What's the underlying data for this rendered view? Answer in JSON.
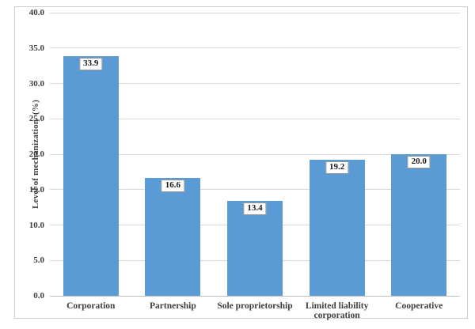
{
  "chart_data": {
    "type": "bar",
    "title": "",
    "categories": [
      "Corporation",
      "Partnership",
      "Sole proprietorship",
      "Limited liability corporation",
      "Cooperative"
    ],
    "values": [
      33.9,
      16.6,
      13.4,
      19.2,
      20.0
    ],
    "value_labels": [
      "33.9",
      "16.6",
      "13.4",
      "19.2",
      "20.0"
    ],
    "xlabel": "",
    "ylabel": "Level of mechanization  (%)",
    "ylim": [
      0,
      40
    ],
    "ytick_labels": [
      "0.0",
      "5.0",
      "10.0",
      "15.0",
      "20.0",
      "25.0",
      "30.0",
      "35.0",
      "40.0"
    ],
    "grid": true,
    "legend": false,
    "colors": {
      "bar": "#5B9BD5",
      "gridline": "#D9D9D9",
      "axis_line": "#BFBFBF",
      "axis_text": "#404040",
      "value_text": "#1a1a1a",
      "value_box_border": "#969696",
      "value_box_fill": "#FFFFFF",
      "figure_border": "#CDCDCD",
      "background": "#FFFFFF"
    }
  }
}
